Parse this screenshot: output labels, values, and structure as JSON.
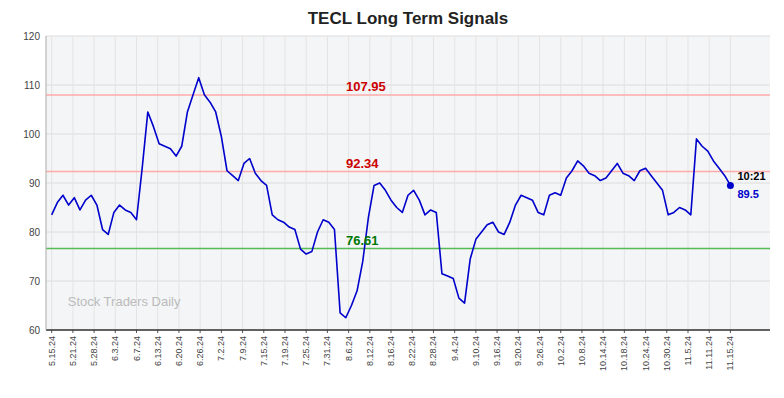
{
  "chart_data": {
    "type": "line",
    "title": "TECL Long Term Signals",
    "color": "#0000cc",
    "values": [
      83.5,
      86.0,
      87.5,
      85.5,
      87.0,
      84.5,
      86.5,
      87.5,
      85.5,
      80.5,
      79.5,
      84.0,
      85.5,
      84.5,
      84.0,
      82.5,
      93.0,
      104.5,
      101.5,
      98.0,
      97.5,
      97.0,
      95.5,
      97.5,
      104.5,
      108.0,
      111.5,
      108.0,
      106.5,
      104.5,
      99.5,
      92.5,
      91.5,
      90.5,
      94.0,
      95.0,
      92.0,
      90.5,
      89.5,
      83.5,
      82.5,
      82.0,
      81.0,
      80.5,
      76.5,
      75.5,
      76.0,
      80.0,
      82.5,
      82.0,
      80.5,
      63.5,
      62.5,
      65.0,
      68.0,
      74.0,
      83.0,
      89.5,
      90.0,
      88.5,
      86.5,
      85.0,
      84.0,
      87.5,
      88.5,
      86.5,
      83.5,
      84.5,
      84.0,
      71.5,
      71.0,
      70.5,
      66.5,
      65.5,
      74.5,
      78.5,
      80.0,
      81.5,
      82.0,
      80.0,
      79.5,
      82.0,
      85.5,
      87.5,
      87.0,
      86.5,
      84.0,
      83.5,
      87.5,
      88.0,
      87.5,
      91.0,
      92.5,
      94.5,
      93.5,
      92.0,
      91.5,
      90.5,
      91.0,
      92.5,
      94.0,
      92.0,
      91.5,
      90.5,
      92.5,
      93.0,
      91.5,
      90.0,
      88.5,
      83.5,
      84.0,
      85.0,
      84.5,
      83.5,
      99.0,
      97.5,
      96.5,
      94.5,
      93.0,
      91.5,
      89.5
    ],
    "xlim": [
      -1,
      127
    ],
    "xticks": [
      {
        "value": 0,
        "label": "5.15.24"
      },
      {
        "value": 3.75,
        "label": "5.21.24"
      },
      {
        "value": 7.5,
        "label": "5.28.24"
      },
      {
        "value": 11.25,
        "label": "6.3.24"
      },
      {
        "value": 15,
        "label": "6.7.24"
      },
      {
        "value": 18.75,
        "label": "6.13.24"
      },
      {
        "value": 22.5,
        "label": "6.20.24"
      },
      {
        "value": 26.25,
        "label": "6.26.24"
      },
      {
        "value": 30,
        "label": "7.2.24"
      },
      {
        "value": 33.75,
        "label": "7.9.24"
      },
      {
        "value": 37.5,
        "label": "7.15.24"
      },
      {
        "value": 41.25,
        "label": "7.19.24"
      },
      {
        "value": 45,
        "label": "7.25.24"
      },
      {
        "value": 48.75,
        "label": "7.31.24"
      },
      {
        "value": 52.5,
        "label": "8.6.24"
      },
      {
        "value": 56.25,
        "label": "8.12.24"
      },
      {
        "value": 60,
        "label": "8.16.24"
      },
      {
        "value": 63.75,
        "label": "8.22.24"
      },
      {
        "value": 67.5,
        "label": "8.28.24"
      },
      {
        "value": 71.25,
        "label": "9.4.24"
      },
      {
        "value": 75,
        "label": "9.10.24"
      },
      {
        "value": 78.75,
        "label": "9.16.24"
      },
      {
        "value": 82.5,
        "label": "9.20.24"
      },
      {
        "value": 86.25,
        "label": "9.26.24"
      },
      {
        "value": 90,
        "label": "10.2.24"
      },
      {
        "value": 93.75,
        "label": "10.8.24"
      },
      {
        "value": 97.5,
        "label": "10.14.24"
      },
      {
        "value": 101.25,
        "label": "10.18.24"
      },
      {
        "value": 105,
        "label": "10.24.24"
      },
      {
        "value": 108.75,
        "label": "10.30.24"
      },
      {
        "value": 112.5,
        "label": "11.5.24"
      },
      {
        "value": 116.25,
        "label": "11.11.24"
      },
      {
        "value": 120,
        "label": "11.15.24"
      }
    ],
    "ylim": [
      60,
      120
    ],
    "yticks": [
      60,
      70,
      80,
      90,
      100,
      110,
      120
    ],
    "grid": true,
    "reference_lines": [
      {
        "value": 107.95,
        "label": "107.95",
        "color": "#ffaaaa",
        "label_color": "#cc0000"
      },
      {
        "value": 92.34,
        "label": "92.34",
        "color": "#ffaaaa",
        "label_color": "#cc0000"
      },
      {
        "value": 76.61,
        "label": "76.61",
        "color": "#55bb55",
        "label_color": "#007700"
      }
    ],
    "annotations": [
      {
        "text": "10:21",
        "color": "#000000"
      },
      {
        "text": "89.5",
        "color": "#0000cc"
      }
    ],
    "watermark": "Stock Traders Daily"
  }
}
